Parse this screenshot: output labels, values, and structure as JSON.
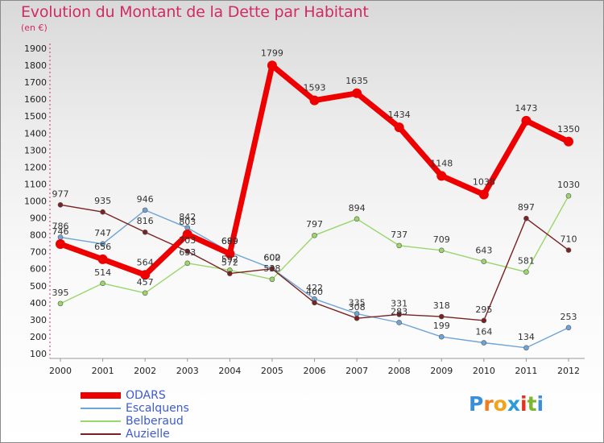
{
  "title": "Evolution du Montant de la Dette par Habitant",
  "subtitle": "(en €)",
  "brand": [
    "P",
    "r",
    "o",
    "x",
    "i",
    "t",
    "i"
  ],
  "chart_data": {
    "type": "line",
    "x": [
      "2000",
      "2001",
      "2002",
      "2003",
      "2004",
      "2005",
      "2006",
      "2007",
      "2008",
      "2009",
      "2010",
      "2011",
      "2012"
    ],
    "ylim": [
      100,
      1900
    ],
    "yticks": [
      100,
      200,
      300,
      400,
      500,
      600,
      700,
      800,
      900,
      1000,
      1100,
      1200,
      1300,
      1400,
      1500,
      1600,
      1700,
      1800,
      1900
    ],
    "grid": false,
    "legend_position": "bottom-left",
    "series": [
      {
        "name": "ODARS",
        "color": "#ee0000",
        "values": [
          746,
          656,
          564,
          803,
          689,
          1799,
          1593,
          1635,
          1434,
          1148,
          1038,
          1473,
          1350
        ]
      },
      {
        "name": "Escalquens",
        "color": "#6ea4d6",
        "values": [
          786,
          747,
          946,
          842,
          699,
          602,
          422,
          335,
          283,
          199,
          164,
          134,
          253
        ]
      },
      {
        "name": "Belberaud",
        "color": "#9ad66a",
        "values": [
          395,
          514,
          457,
          633,
          592,
          538,
          797,
          894,
          737,
          709,
          643,
          581,
          1030
        ]
      },
      {
        "name": "Auzielle",
        "color": "#7a2222",
        "values": [
          977,
          935,
          816,
          703,
          572,
          600,
          400,
          308,
          331,
          318,
          295,
          897,
          710
        ]
      }
    ],
    "labels": [
      [
        "746",
        "656",
        "564",
        "803",
        "689",
        "1799",
        "1593",
        "1635",
        "1434",
        "1148",
        "1038",
        "1473",
        "1350"
      ],
      [
        "786",
        "747",
        "946",
        "842",
        "699",
        "602",
        "422",
        "335",
        "283",
        "199",
        "164",
        "134",
        "253"
      ],
      [
        "395",
        "514",
        "457",
        "633",
        "592",
        "538",
        "797",
        "894",
        "737",
        "709",
        "643",
        "581",
        "1030"
      ],
      [
        "977",
        "935",
        "816",
        "703",
        "572",
        "600",
        "400",
        "308",
        "331",
        "318",
        "295",
        "897",
        "710"
      ]
    ]
  }
}
